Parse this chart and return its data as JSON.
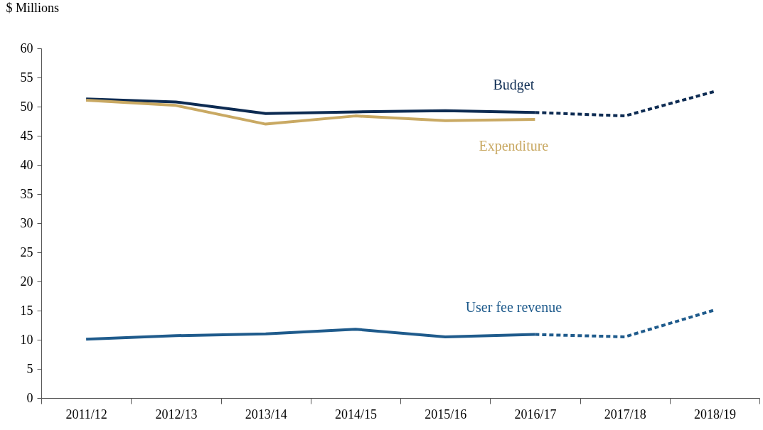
{
  "chart_data": {
    "type": "line",
    "ylabel": "$ Millions",
    "categories": [
      "2011/12",
      "2012/13",
      "2013/14",
      "2014/15",
      "2015/16",
      "2016/17",
      "2017/18",
      "2018/19"
    ],
    "ylim": [
      0,
      60
    ],
    "yticks": [
      0,
      5,
      10,
      15,
      20,
      25,
      30,
      35,
      40,
      45,
      50,
      55,
      60
    ],
    "grid": false,
    "series": [
      {
        "name": "Budget",
        "color": "#0d2b52",
        "line_style": "solid",
        "values": [
          51.3,
          50.8,
          48.8,
          49.1,
          49.3,
          49.0,
          null,
          null
        ]
      },
      {
        "color": "#0d2b52",
        "line_style": "dashed",
        "values": [
          null,
          null,
          null,
          null,
          null,
          49.0,
          48.4,
          52.6
        ]
      },
      {
        "name": "Expenditure",
        "color": "#c9a963",
        "line_style": "solid",
        "values": [
          51.1,
          50.2,
          47.0,
          48.4,
          47.6,
          47.8,
          null,
          null
        ]
      },
      {
        "name": "User fee revenue",
        "color": "#1f5b8c",
        "line_style": "solid",
        "values": [
          10.1,
          10.7,
          11.0,
          11.8,
          10.5,
          10.9,
          null,
          null
        ]
      },
      {
        "color": "#1f5b8c",
        "line_style": "dashed",
        "values": [
          null,
          null,
          null,
          null,
          null,
          10.9,
          10.5,
          15.1
        ]
      }
    ]
  }
}
